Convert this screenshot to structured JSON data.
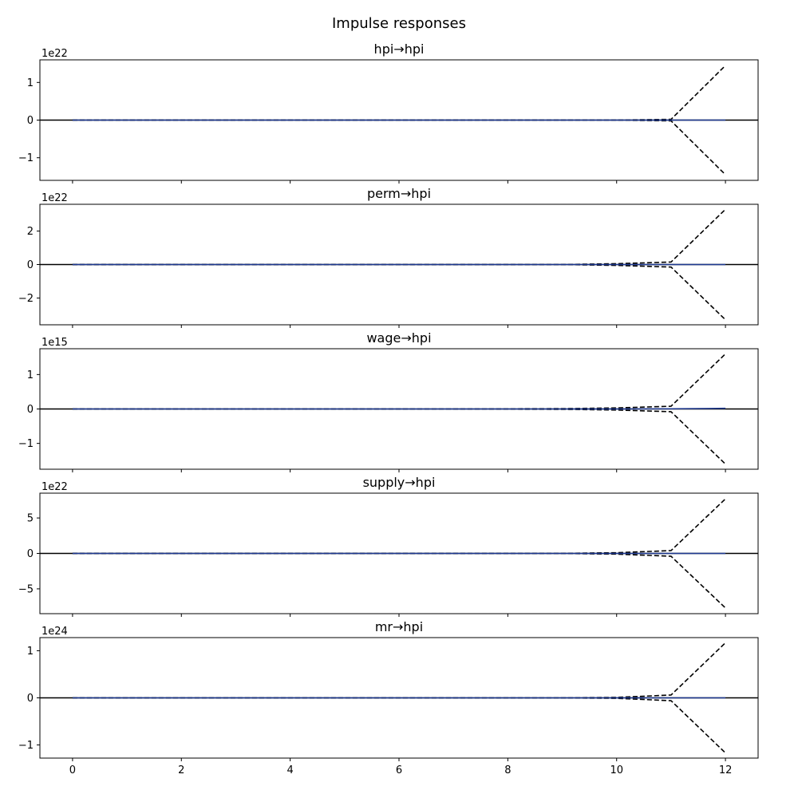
{
  "figure": {
    "title": "Impulse responses"
  },
  "chart_data": [
    {
      "type": "line",
      "title": "hpi→hpi",
      "offset_text": "1e22",
      "x_ticks": [
        0,
        2,
        4,
        6,
        8,
        10,
        12
      ],
      "y_ticks": [
        -1,
        0,
        1
      ],
      "ylim": [
        -1.6,
        1.6
      ],
      "xlim": [
        -0.6,
        12.6
      ],
      "x": [
        0,
        1,
        2,
        3,
        4,
        5,
        6,
        7,
        8,
        9,
        10,
        11,
        12
      ],
      "response": [
        0,
        0,
        0,
        0,
        0,
        0,
        0,
        0,
        0,
        0,
        0,
        0,
        0
      ],
      "upper": [
        0,
        0,
        0,
        0,
        0,
        0,
        0,
        0,
        0,
        0,
        0,
        0.02,
        1.45
      ],
      "lower": [
        0,
        0,
        0,
        0,
        0,
        0,
        0,
        0,
        0,
        0,
        0,
        -0.02,
        -1.45
      ]
    },
    {
      "type": "line",
      "title": "perm→hpi",
      "offset_text": "1e22",
      "x_ticks": [
        0,
        2,
        4,
        6,
        8,
        10,
        12
      ],
      "y_ticks": [
        -2,
        0,
        2
      ],
      "ylim": [
        -3.6,
        3.6
      ],
      "xlim": [
        -0.6,
        12.6
      ],
      "x": [
        0,
        1,
        2,
        3,
        4,
        5,
        6,
        7,
        8,
        9,
        10,
        11,
        12
      ],
      "response": [
        0,
        0,
        0,
        0,
        0,
        0,
        0,
        0,
        0,
        0,
        0,
        0,
        0
      ],
      "upper": [
        0,
        0,
        0,
        0,
        0,
        0,
        0,
        0,
        0,
        0,
        0.05,
        0.15,
        3.3
      ],
      "lower": [
        0,
        0,
        0,
        0,
        0,
        0,
        0,
        0,
        0,
        0,
        -0.05,
        -0.15,
        -3.3
      ]
    },
    {
      "type": "line",
      "title": "wage→hpi",
      "offset_text": "1e15",
      "x_ticks": [
        0,
        2,
        4,
        6,
        8,
        10,
        12
      ],
      "y_ticks": [
        -1,
        0,
        1
      ],
      "ylim": [
        -1.75,
        1.75
      ],
      "xlim": [
        -0.6,
        12.6
      ],
      "x": [
        0,
        1,
        2,
        3,
        4,
        5,
        6,
        7,
        8,
        9,
        10,
        11,
        12
      ],
      "response": [
        0,
        0,
        0,
        0,
        0,
        0,
        0,
        0,
        0,
        0,
        0,
        0.005,
        0.02
      ],
      "upper": [
        0,
        0,
        0,
        0,
        0,
        0,
        0,
        0,
        0.005,
        0.01,
        0.03,
        0.08,
        1.6
      ],
      "lower": [
        0,
        0,
        0,
        0,
        0,
        0,
        0,
        0,
        -0.005,
        -0.01,
        -0.03,
        -0.08,
        -1.6
      ]
    },
    {
      "type": "line",
      "title": "supply→hpi",
      "offset_text": "1e22",
      "x_ticks": [
        0,
        2,
        4,
        6,
        8,
        10,
        12
      ],
      "y_ticks": [
        -5,
        0,
        5
      ],
      "ylim": [
        -8.5,
        8.5
      ],
      "xlim": [
        -0.6,
        12.6
      ],
      "x": [
        0,
        1,
        2,
        3,
        4,
        5,
        6,
        7,
        8,
        9,
        10,
        11,
        12
      ],
      "response": [
        0,
        0,
        0,
        0,
        0,
        0,
        0,
        0,
        0,
        0,
        0,
        0,
        0
      ],
      "upper": [
        0,
        0,
        0,
        0,
        0,
        0,
        0,
        0,
        0,
        0,
        0.1,
        0.4,
        7.7
      ],
      "lower": [
        0,
        0,
        0,
        0,
        0,
        0,
        0,
        0,
        0,
        0,
        -0.1,
        -0.4,
        -7.7
      ]
    },
    {
      "type": "line",
      "title": "mr→hpi",
      "offset_text": "1e24",
      "x_ticks": [
        0,
        2,
        4,
        6,
        8,
        10,
        12
      ],
      "y_ticks": [
        -1,
        0,
        1
      ],
      "ylim": [
        -1.28,
        1.28
      ],
      "xlim": [
        -0.6,
        12.6
      ],
      "x": [
        0,
        1,
        2,
        3,
        4,
        5,
        6,
        7,
        8,
        9,
        10,
        11,
        12
      ],
      "response": [
        0,
        0,
        0,
        0,
        0,
        0,
        0,
        0,
        0,
        0,
        0,
        0,
        0
      ],
      "upper": [
        0,
        0,
        0,
        0,
        0,
        0,
        0,
        0,
        0,
        0,
        0.01,
        0.06,
        1.17
      ],
      "lower": [
        0,
        0,
        0,
        0,
        0,
        0,
        0,
        0,
        0,
        0,
        -0.01,
        -0.06,
        -1.17
      ]
    }
  ]
}
